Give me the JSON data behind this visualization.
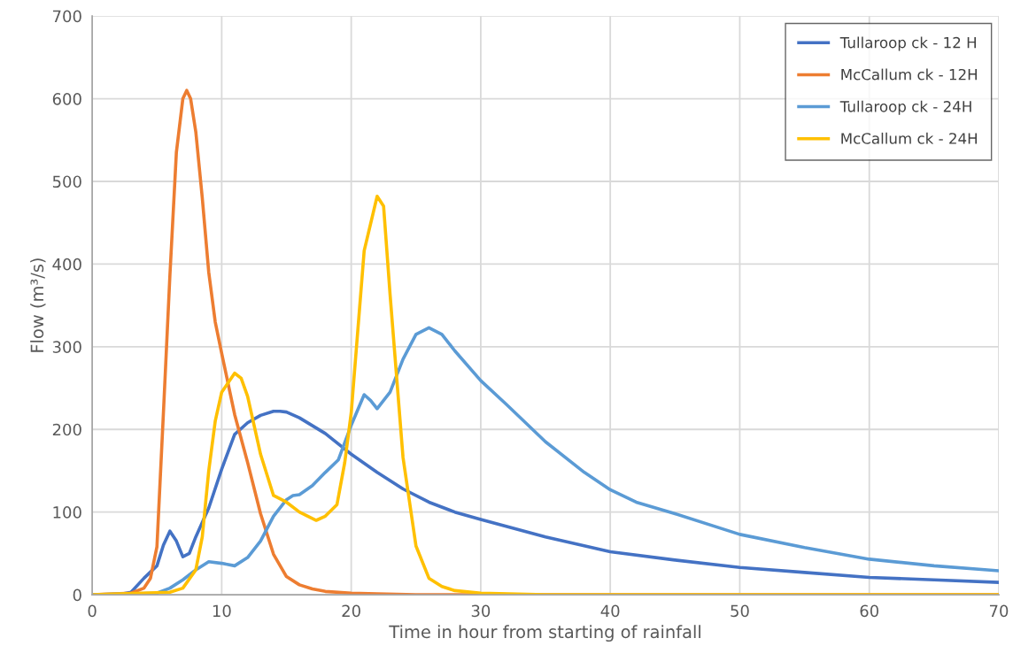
{
  "chart_data": {
    "type": "line",
    "xlabel": "Time in hour from starting of rainfall",
    "ylabel": "Flow (m³/s)",
    "xlim": [
      0,
      70
    ],
    "ylim": [
      0,
      700
    ],
    "xticks": [
      0,
      10,
      20,
      30,
      40,
      50,
      60,
      70
    ],
    "yticks": [
      0,
      100,
      200,
      300,
      400,
      500,
      600,
      700
    ],
    "grid": true,
    "legend": "top right",
    "marker": "none",
    "line_style": "solid",
    "series": [
      {
        "name": "Tullaroop ck - 12 H",
        "color": "#4472c4",
        "x": [
          0,
          2,
          3,
          4,
          5,
          5.5,
          6,
          6.5,
          7,
          7.5,
          8,
          9,
          10,
          11,
          12,
          13,
          14,
          14.5,
          15,
          16,
          18,
          20,
          22,
          24,
          26,
          28,
          30,
          35,
          40,
          45,
          50,
          55,
          60,
          65,
          70
        ],
        "values": [
          0,
          0,
          3,
          20,
          35,
          60,
          77,
          65,
          46,
          50,
          70,
          105,
          152,
          194,
          208,
          217,
          222,
          222,
          221,
          214,
          195,
          170,
          148,
          128,
          112,
          100,
          91,
          70,
          52,
          42,
          33,
          27,
          21,
          18,
          15
        ]
      },
      {
        "name": "McCallum ck - 12H",
        "color": "#ed7d31",
        "x": [
          0,
          3,
          4,
          4.5,
          5,
          5.5,
          6,
          6.5,
          7,
          7.3,
          7.6,
          8,
          8.5,
          9,
          9.5,
          10,
          11,
          12,
          13,
          14,
          15,
          16,
          17,
          18,
          20,
          22,
          25,
          70
        ],
        "values": [
          0,
          2,
          8,
          20,
          58,
          220,
          386,
          535,
          600,
          610,
          600,
          560,
          480,
          390,
          330,
          292,
          218,
          160,
          98,
          49,
          22,
          12,
          7,
          4,
          2,
          1,
          0,
          0
        ]
      },
      {
        "name": "Tullaroop ck - 24H",
        "color": "#5b9bd5",
        "x": [
          0,
          5,
          6,
          7,
          8,
          9,
          10,
          11,
          12,
          13,
          14,
          15,
          15.5,
          16,
          17,
          18,
          19,
          20,
          21,
          21.5,
          22,
          23,
          24,
          25,
          26,
          27,
          28,
          30,
          32,
          35,
          38,
          40,
          42,
          45,
          50,
          55,
          60,
          65,
          70
        ],
        "values": [
          0,
          2,
          8,
          18,
          30,
          40,
          38,
          35,
          45,
          65,
          95,
          115,
          120,
          121,
          132,
          148,
          163,
          205,
          242,
          235,
          225,
          245,
          285,
          315,
          323,
          315,
          295,
          259,
          230,
          185,
          148,
          127,
          112,
          98,
          73,
          57,
          43,
          35,
          29
        ]
      },
      {
        "name": "McCallum ck - 24H",
        "color": "#ffc000",
        "x": [
          0,
          6,
          7,
          8,
          8.5,
          9,
          9.5,
          10,
          11,
          11.5,
          12,
          13,
          14,
          15,
          16,
          17.3,
          18,
          18.9,
          19.5,
          20,
          21,
          22,
          22.5,
          23,
          24,
          25,
          26,
          27,
          28,
          30,
          35,
          70
        ],
        "values": [
          0,
          3,
          8,
          30,
          70,
          150,
          210,
          245,
          268,
          262,
          240,
          170,
          120,
          112,
          100,
          90,
          95,
          109,
          160,
          220,
          416,
          482,
          470,
          363,
          166,
          59,
          20,
          10,
          5,
          2,
          0,
          0
        ]
      }
    ]
  }
}
